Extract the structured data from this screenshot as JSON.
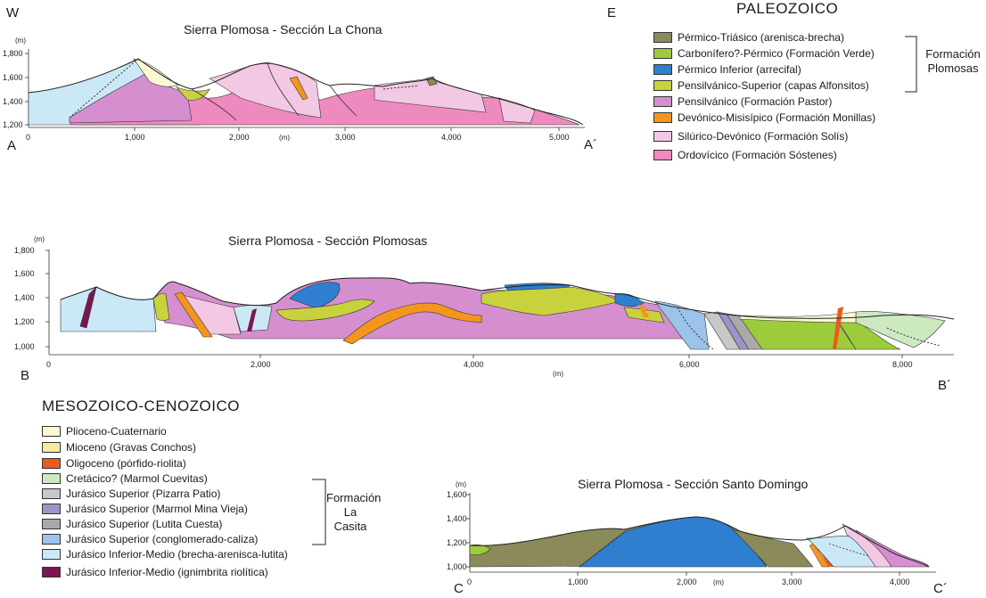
{
  "corner_letter_W": "W",
  "corner_letter_E": "E",
  "section_a": {
    "title": "Sierra Plomosa - Sección La Chona",
    "start": "A",
    "end": "A´",
    "unit_y": "(m)",
    "unit_x": "(m)",
    "y_ticks": [
      "1,800",
      "1,600",
      "1,400",
      "1,200"
    ],
    "x_ticks": [
      "0",
      "1,000",
      "2,000",
      "3,000",
      "4,000",
      "5,000"
    ]
  },
  "section_b": {
    "title": "Sierra Plomosa - Sección Plomosas",
    "start": "B",
    "end": "B´",
    "unit_y": "(m)",
    "unit_x": "(m)",
    "y_ticks": [
      "1,800",
      "1,600",
      "1,400",
      "1,200",
      "1,000"
    ],
    "x_ticks": [
      "0",
      "2,000",
      "4,000",
      "6,000",
      "8,000"
    ]
  },
  "section_c": {
    "title": "Sierra Plomosa - Sección Santo Domingo",
    "start": "C",
    "end": "C´",
    "unit_y": "(m)",
    "unit_x": "(m)",
    "y_ticks": [
      "1,600",
      "1,400",
      "1,200",
      "1,000"
    ],
    "x_ticks": [
      "0",
      "1,000",
      "2,000",
      "3,000",
      "4,000"
    ]
  },
  "legend_paleozoico": {
    "heading": "PALEOZOICO",
    "group_label_line1": "Formación",
    "group_label_line2": "Plomosas",
    "items": [
      {
        "label": "Pérmico-Triásico (arenisca-brecha)",
        "color": "#8b8a5a"
      },
      {
        "label": "Carbonífero?-Pérmico (Formación Verde)",
        "color": "#9ccc3c"
      },
      {
        "label": "Pérmico Inferior (arrecifal)",
        "color": "#2f7fd0"
      },
      {
        "label": "Pensilvánico-Superior (capas Alfonsitos)",
        "color": "#c8d23c"
      },
      {
        "label": "Pensilvánico (Formación Pastor)",
        "color": "#d58fcf"
      },
      {
        "label": "Devónico-Misisípico (Formación Monillas)",
        "color": "#f4961e"
      },
      {
        "label": "Silúrico-Devónico (Formación Solís)",
        "color": "#f2c8e4"
      },
      {
        "label": "Ordovícico (Formación Sóstenes)",
        "color": "#ee8ac0"
      }
    ]
  },
  "legend_mesozoico": {
    "heading": "MESOZOICO-CENOZOICO",
    "group_label_line1": "Formación",
    "group_label_line2": "La Casita",
    "items": [
      {
        "label": "Plioceno-Cuaternario",
        "color": "#fbf8d2"
      },
      {
        "label": "Mioceno (Gravas Conchos)",
        "color": "#f6eb9c"
      },
      {
        "label": "Oligoceno (pórfido-riolita)",
        "color": "#ec5a1c"
      },
      {
        "label": "Cretácico? (Marmol Cuevitas)",
        "color": "#cde9c0"
      },
      {
        "label": "Jurásico Superior (Pizarra Patio)",
        "color": "#c8c8c8"
      },
      {
        "label": "Jurásico Superior (Marmol Mina Vieja)",
        "color": "#9a95c6"
      },
      {
        "label": "Jurásico Superior (Lutita Cuesta)",
        "color": "#a9a9a9"
      },
      {
        "label": "Jurásico Superior (conglomerado-caliza)",
        "color": "#9cc4ea"
      },
      {
        "label": "Jurásico Inferior-Medio (brecha-arenisca-lutita)",
        "color": "#cbe8f6"
      },
      {
        "label": "Jurásico Inferior-Medio (ignimbrita riolítica)",
        "color": "#7c1650"
      }
    ]
  }
}
